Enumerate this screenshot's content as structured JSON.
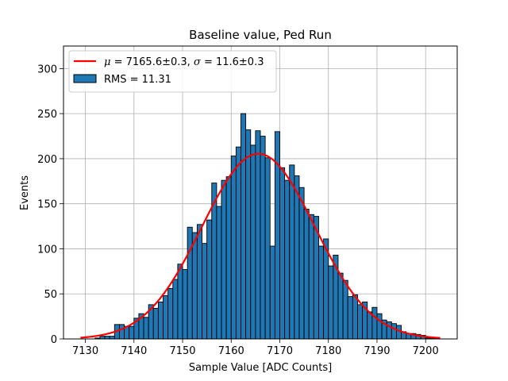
{
  "chart_data": {
    "type": "bar",
    "title": "Baseline value, Ped Run",
    "xlabel": "Sample Value [ADC Counts]",
    "ylabel": "Events",
    "xlim": [
      7125.5,
      7206.5
    ],
    "ylim": [
      0,
      325
    ],
    "xticks": [
      7130,
      7140,
      7150,
      7160,
      7170,
      7180,
      7190,
      7200
    ],
    "yticks": [
      0,
      50,
      100,
      150,
      200,
      250,
      300
    ],
    "grid": true,
    "bin_width": 1,
    "bins": {
      "x": [
        7129,
        7130,
        7131,
        7132,
        7133,
        7134,
        7135,
        7136,
        7137,
        7138,
        7139,
        7140,
        7141,
        7142,
        7143,
        7144,
        7145,
        7146,
        7147,
        7148,
        7149,
        7150,
        7151,
        7152,
        7153,
        7154,
        7155,
        7156,
        7157,
        7158,
        7159,
        7160,
        7161,
        7162,
        7163,
        7164,
        7165,
        7166,
        7167,
        7168,
        7169,
        7170,
        7171,
        7172,
        7173,
        7174,
        7175,
        7176,
        7177,
        7178,
        7179,
        7180,
        7181,
        7182,
        7183,
        7184,
        7185,
        7186,
        7187,
        7188,
        7189,
        7190,
        7191,
        7192,
        7193,
        7194,
        7195,
        7196,
        7197,
        7198,
        7199,
        7200,
        7201,
        7202
      ],
      "values": [
        0,
        0,
        0,
        1,
        3,
        3,
        3,
        16,
        16,
        14,
        14,
        23,
        28,
        24,
        38,
        34,
        41,
        48,
        56,
        66,
        83,
        77,
        124,
        118,
        127,
        106,
        132,
        173,
        147,
        176,
        180,
        203,
        213,
        250,
        232,
        215,
        231,
        225,
        201,
        103,
        230,
        190,
        176,
        193,
        181,
        168,
        144,
        138,
        136,
        103,
        111,
        81,
        93,
        73,
        65,
        47,
        49,
        38,
        41,
        30,
        35,
        28,
        21,
        19,
        17,
        15,
        8,
        6,
        6,
        5,
        4,
        1,
        1,
        0
      ]
    },
    "series": [
      {
        "name": "RMS = 11.31",
        "kind": "histogram",
        "color": "#1f77b4"
      },
      {
        "name_math_mu": "μ",
        "name_mid": " = 7165.6±0.3, ",
        "name_math_sigma": "σ",
        "name_tail": " = 11.6±0.3",
        "kind": "gaussian-fit",
        "color": "#ff0000",
        "mu": 7165.6,
        "sigma": 11.6,
        "amplitude": 205.5,
        "x_range": [
          7129,
          7203
        ]
      }
    ],
    "legend_position": "upper left"
  }
}
